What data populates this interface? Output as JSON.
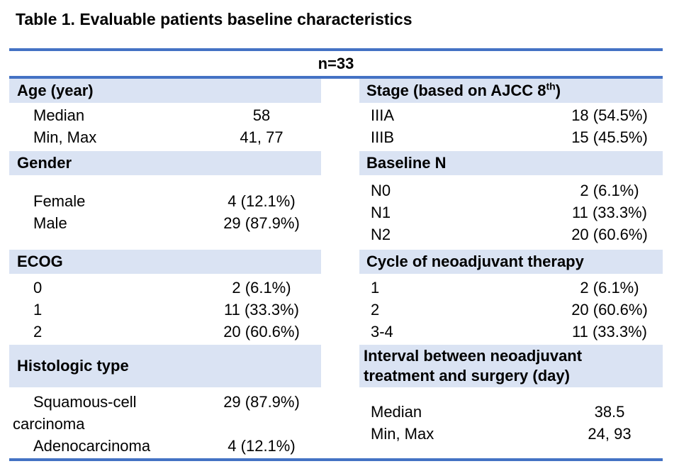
{
  "title": "Table 1. Evaluable patients baseline characteristics",
  "n_label": "n=33",
  "colors": {
    "accent_line": "#4472C4",
    "band_bg": "#DAE3F3",
    "text": "#000000"
  },
  "table": {
    "left": {
      "age": {
        "header": "Age (year)",
        "rows": [
          {
            "label": "Median",
            "value": "58"
          },
          {
            "label": "Min, Max",
            "value": "41, 77"
          }
        ]
      },
      "gender": {
        "header": "Gender",
        "rows": [
          {
            "label": "Female",
            "value": "4 (12.1%)"
          },
          {
            "label": "Male",
            "value": "29 (87.9%)"
          }
        ]
      },
      "ecog": {
        "header": "ECOG",
        "rows": [
          {
            "label": "0",
            "value": "2 (6.1%)"
          },
          {
            "label": "1",
            "value": "11 (33.3%)"
          },
          {
            "label": "2",
            "value": "20 (60.6%)"
          }
        ]
      },
      "histology": {
        "header": "Histologic type",
        "row1": {
          "label_line1": "Squamous-cell",
          "label_line2": "carcinoma",
          "value": "29 (87.9%)"
        },
        "row2": {
          "label": "Adenocarcinoma",
          "value": "4 (12.1%)"
        }
      }
    },
    "right": {
      "stage": {
        "header_main": "Stage (based on AJCC 8",
        "header_sup": "th",
        "header_end": ")",
        "rows": [
          {
            "label": "IIIA",
            "value": "18 (54.5%)"
          },
          {
            "label": "IIIB",
            "value": "15 (45.5%)"
          }
        ]
      },
      "baseline_n": {
        "header": "Baseline N",
        "rows": [
          {
            "label": "N0",
            "value": "2 (6.1%)"
          },
          {
            "label": "N1",
            "value": "11 (33.3%)"
          },
          {
            "label": "N2",
            "value": "20 (60.6%)"
          }
        ]
      },
      "cycle": {
        "header": "Cycle of neoadjuvant therapy",
        "rows": [
          {
            "label": "1",
            "value": "2 (6.1%)"
          },
          {
            "label": "2",
            "value": "20 (60.6%)"
          },
          {
            "label": "3-4",
            "value": "11 (33.3%)"
          }
        ]
      },
      "interval": {
        "header_line1": "Interval between neoadjuvant",
        "header_line2": "treatment and surgery (day)",
        "rows": [
          {
            "label": "Median",
            "value": "38.5"
          },
          {
            "label": "Min, Max",
            "value": "24, 93"
          }
        ]
      }
    }
  }
}
